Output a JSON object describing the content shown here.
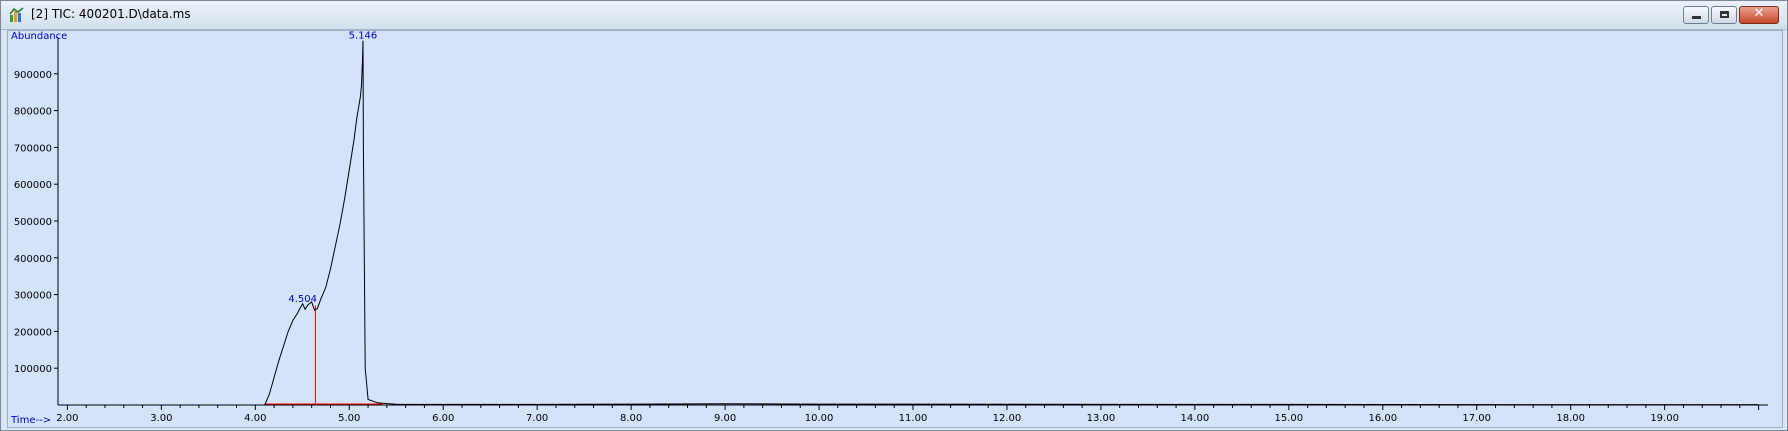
{
  "window": {
    "title": "[2] TIC: 400201.D\\data.ms",
    "icon": "chromatogram-app-icon",
    "close_label": "✕"
  },
  "colors": {
    "plot_background": "#d3e3fb",
    "trace": "#000000",
    "baseline": "#ff0000",
    "label": "#0000cc"
  },
  "chart_data": {
    "type": "line",
    "ylabel": "Abundance",
    "xlabel": "Time-->",
    "xlim": [
      1.9,
      20.1
    ],
    "ylim": [
      0,
      1000000
    ],
    "x_ticks": [
      "2.00",
      "3.00",
      "4.00",
      "5.00",
      "6.00",
      "7.00",
      "8.00",
      "9.00",
      "10.00",
      "11.00",
      "12.00",
      "13.00",
      "14.00",
      "15.00",
      "16.00",
      "17.00",
      "18.00",
      "19.00"
    ],
    "y_ticks": [
      "100000",
      "200000",
      "300000",
      "400000",
      "500000",
      "600000",
      "700000",
      "800000",
      "900000"
    ],
    "grid": false,
    "series": [
      {
        "x": [
          4.1,
          4.15,
          4.2,
          4.25,
          4.3,
          4.35,
          4.4,
          4.45,
          4.48,
          4.504,
          4.53,
          4.56,
          4.6,
          4.63,
          4.66,
          4.7,
          4.75,
          4.8,
          4.85,
          4.9,
          4.95,
          5.0,
          5.05,
          5.08,
          5.1,
          5.12,
          5.13,
          5.14,
          5.146,
          5.15,
          5.16,
          5.17,
          5.2,
          5.3,
          5.5,
          6.0,
          7.0,
          8.0,
          9.0,
          10.0,
          12.0,
          15.0,
          18.0,
          20.0
        ],
        "y": [
          0,
          30000,
          75000,
          120000,
          160000,
          200000,
          230000,
          250000,
          265000,
          275000,
          260000,
          272000,
          280000,
          258000,
          262000,
          290000,
          320000,
          370000,
          430000,
          490000,
          560000,
          640000,
          720000,
          780000,
          810000,
          840000,
          870000,
          930000,
          990000,
          700000,
          400000,
          100000,
          15000,
          6000,
          2000,
          1500,
          1500,
          2500,
          3500,
          2500,
          2000,
          1500,
          1200,
          1000
        ]
      }
    ],
    "baseline": [
      {
        "x": [
          4.1,
          4.64
        ],
        "y": [
          0,
          0
        ]
      },
      {
        "x": [
          4.64,
          5.35
        ],
        "y": [
          0,
          0
        ]
      }
    ],
    "drop_lines": [
      {
        "x": 4.64,
        "y": 270000
      }
    ],
    "peaks": [
      {
        "label": "4.504",
        "x": 4.504,
        "y": 275000
      },
      {
        "label": "5.146",
        "x": 5.146,
        "y": 990000
      }
    ]
  }
}
